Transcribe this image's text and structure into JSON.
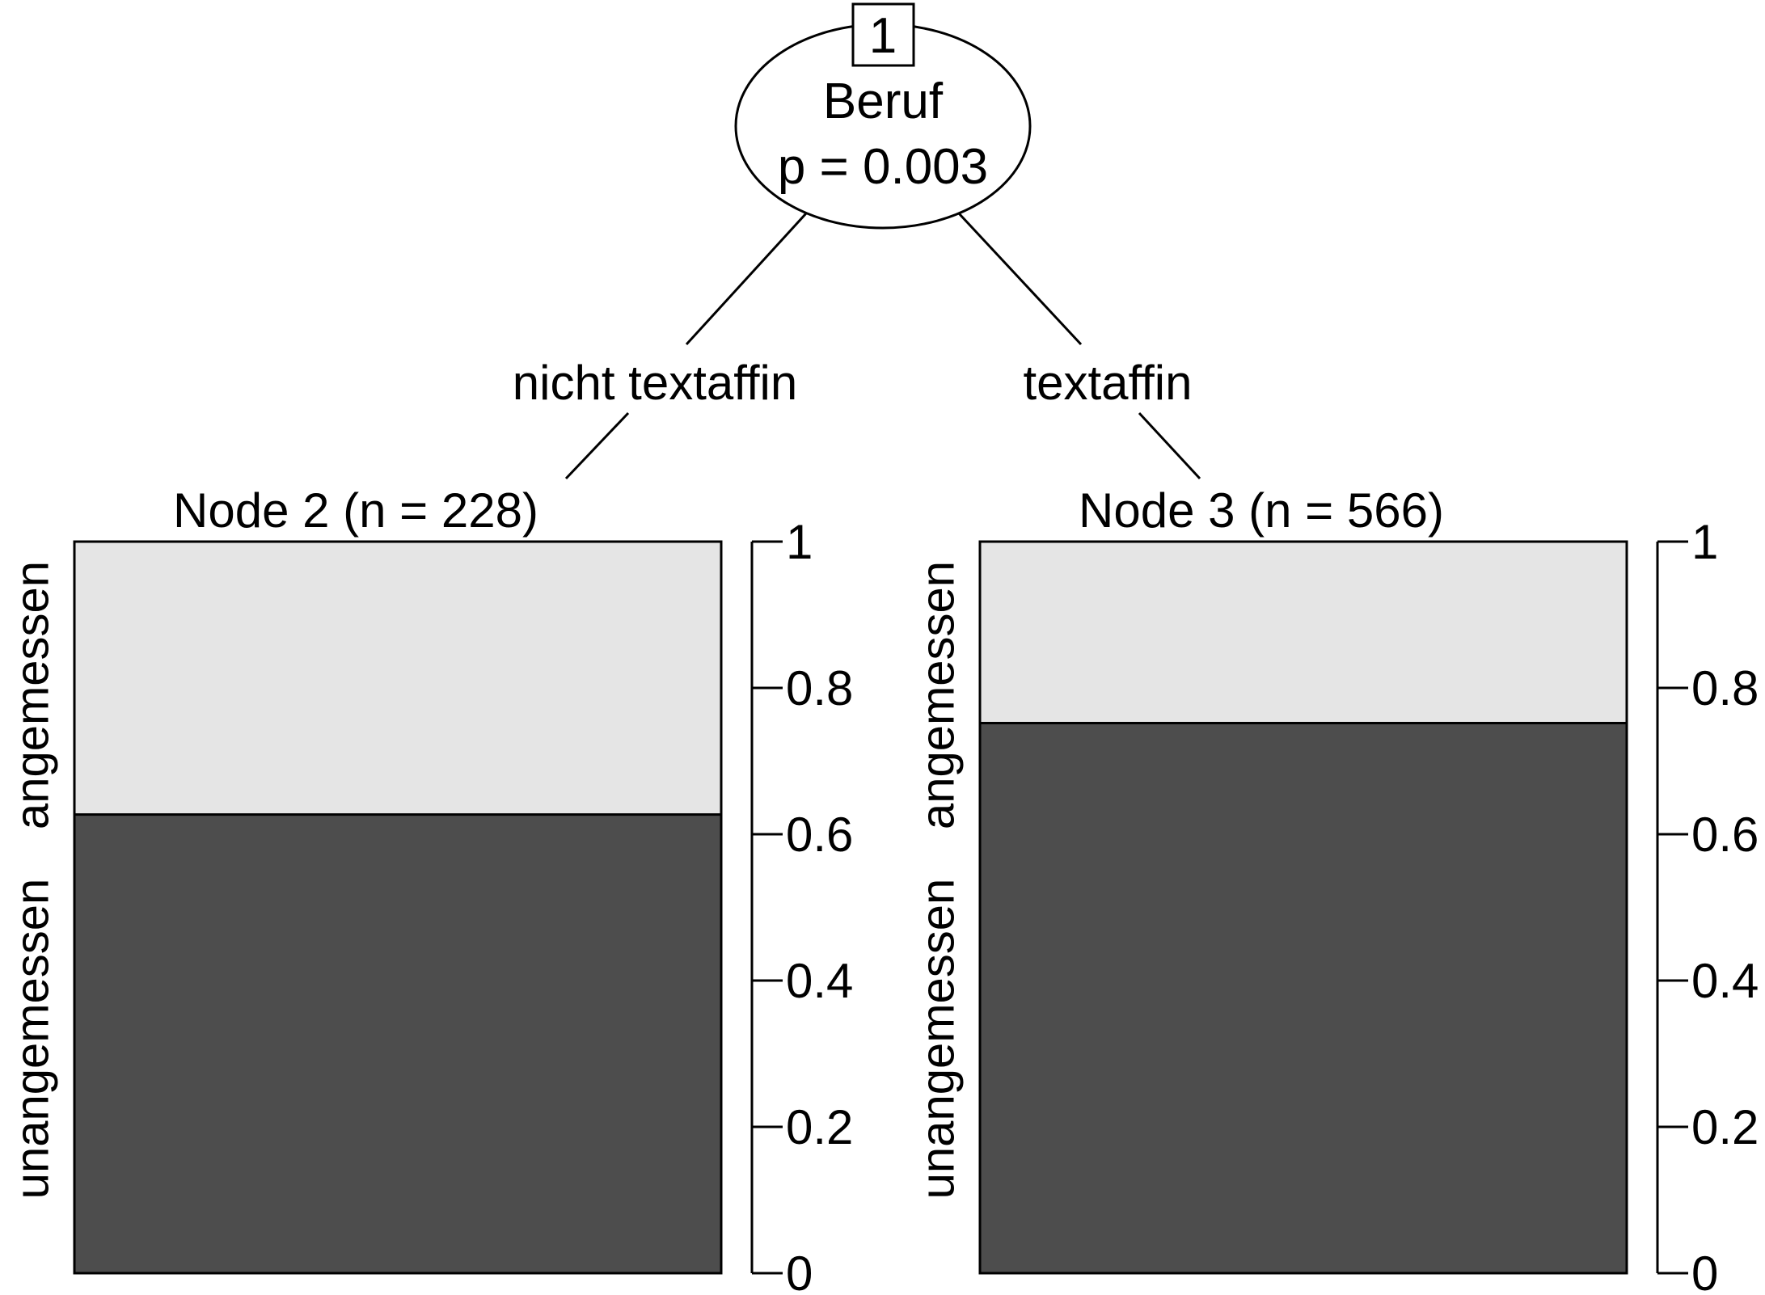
{
  "tree": {
    "root": {
      "id": "1",
      "variable": "Beruf",
      "pvalue": "p = 0.003"
    },
    "edges": [
      {
        "label": "nicht textaffin"
      },
      {
        "label": "textaffin"
      }
    ],
    "leaves": [
      {
        "title": "Node 2 (n = 228)"
      },
      {
        "title": "Node 3 (n = 566)"
      }
    ],
    "axis_ticks": [
      "0",
      "0.2",
      "0.4",
      "0.6",
      "0.8",
      "1"
    ],
    "class_labels": {
      "upper": "angemessen",
      "lower": "unangemessen"
    }
  },
  "chart_data": {
    "type": "bar",
    "stacked": true,
    "categories": [
      "Node 2 (n = 228)",
      "Node 3 (n = 566)"
    ],
    "series": [
      {
        "name": "unangemessen",
        "values": [
          0.627,
          0.752
        ],
        "color": "#4d4d4d"
      },
      {
        "name": "angemessen",
        "values": [
          0.373,
          0.248
        ],
        "color": "#e5e5e5"
      }
    ],
    "ylim": [
      0,
      1
    ],
    "yticks": [
      0,
      0.2,
      0.4,
      0.6,
      0.8,
      1
    ]
  }
}
